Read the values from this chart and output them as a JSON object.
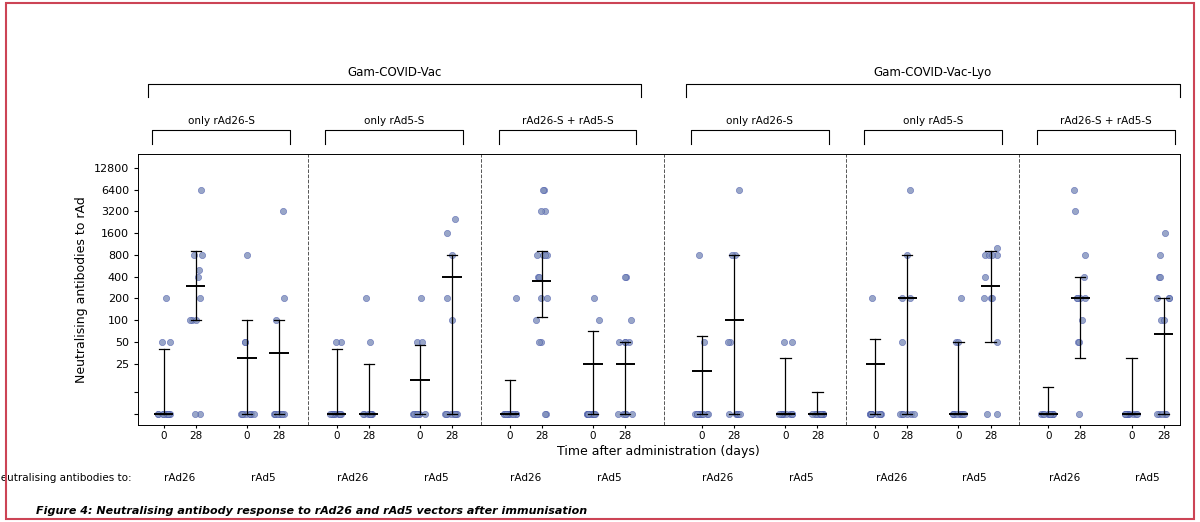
{
  "title_vac1": "Gam-COVID-Vac",
  "title_vac2": "Gam-COVID-Vac-Lyo",
  "ylabel": "Neutralising antibodies to rAd",
  "xlabel": "Time after administration (days)",
  "caption": "Figure 4: Neutralising antibody response to rAd26 and rAd5 vectors after immunisation",
  "neutralising_label": "Neutralising antibodies to:",
  "sub_names": [
    "only rAd26-S",
    "only rAd5-S",
    "rAd26-S + rAd5-S"
  ],
  "antibody_labels": [
    "rAd26",
    "rAd5"
  ],
  "yticks": [
    5,
    10,
    25,
    50,
    100,
    200,
    400,
    800,
    1600,
    3200,
    6400,
    12800
  ],
  "ytick_labels": [
    "",
    "",
    "25",
    "50",
    "100",
    "200",
    "400",
    "800",
    "1600",
    "3200",
    "6400",
    "12800"
  ],
  "dot_color": "#8090bb",
  "dot_edge_color": "#4455aa",
  "background_color": "#ffffff",
  "border_color": "#cc4455",
  "columns": [
    {
      "group": 0,
      "timepoint": 0,
      "ab": "rAd26",
      "dots": [
        5,
        5,
        5,
        5,
        5,
        5,
        5,
        5,
        5,
        5,
        50,
        50,
        200
      ],
      "median": 5,
      "iqr_low": 5,
      "iqr_high": 40
    },
    {
      "group": 0,
      "timepoint": 28,
      "ab": "rAd26",
      "dots": [
        5,
        5,
        100,
        100,
        100,
        200,
        400,
        500,
        800,
        800,
        6400
      ],
      "median": 300,
      "iqr_low": 100,
      "iqr_high": 900
    },
    {
      "group": 0,
      "timepoint": 0,
      "ab": "rAd5",
      "dots": [
        5,
        5,
        5,
        5,
        5,
        5,
        5,
        5,
        50,
        50,
        800
      ],
      "median": 30,
      "iqr_low": 5,
      "iqr_high": 100
    },
    {
      "group": 0,
      "timepoint": 28,
      "ab": "rAd5",
      "dots": [
        5,
        5,
        5,
        5,
        5,
        5,
        5,
        5,
        100,
        200,
        3200
      ],
      "median": 35,
      "iqr_low": 5,
      "iqr_high": 100
    },
    {
      "group": 1,
      "timepoint": 0,
      "ab": "rAd26",
      "dots": [
        5,
        5,
        5,
        5,
        5,
        5,
        5,
        5,
        5,
        50,
        50
      ],
      "median": 5,
      "iqr_low": 5,
      "iqr_high": 40
    },
    {
      "group": 1,
      "timepoint": 28,
      "ab": "rAd26",
      "dots": [
        5,
        5,
        5,
        5,
        5,
        5,
        5,
        5,
        5,
        50,
        200
      ],
      "median": 5,
      "iqr_low": 5,
      "iqr_high": 25
    },
    {
      "group": 1,
      "timepoint": 0,
      "ab": "rAd5",
      "dots": [
        5,
        5,
        5,
        5,
        5,
        5,
        5,
        5,
        50,
        50,
        200
      ],
      "median": 15,
      "iqr_low": 5,
      "iqr_high": 45
    },
    {
      "group": 1,
      "timepoint": 28,
      "ab": "rAd5",
      "dots": [
        5,
        5,
        5,
        5,
        5,
        5,
        5,
        5,
        100,
        200,
        800,
        1600,
        2500
      ],
      "median": 400,
      "iqr_low": 5,
      "iqr_high": 800
    },
    {
      "group": 2,
      "timepoint": 0,
      "ab": "rAd26",
      "dots": [
        5,
        5,
        5,
        5,
        5,
        5,
        5,
        5,
        5,
        5,
        5,
        200
      ],
      "median": 5,
      "iqr_low": 5,
      "iqr_high": 15
    },
    {
      "group": 2,
      "timepoint": 28,
      "ab": "rAd26",
      "dots": [
        5,
        5,
        50,
        50,
        100,
        200,
        200,
        400,
        400,
        800,
        800,
        800,
        800,
        3200,
        3200,
        6400,
        6400
      ],
      "median": 350,
      "iqr_low": 110,
      "iqr_high": 900
    },
    {
      "group": 2,
      "timepoint": 0,
      "ab": "rAd5",
      "dots": [
        5,
        5,
        5,
        5,
        5,
        5,
        5,
        5,
        5,
        5,
        100,
        200
      ],
      "median": 25,
      "iqr_low": 5,
      "iqr_high": 70
    },
    {
      "group": 2,
      "timepoint": 28,
      "ab": "rAd5",
      "dots": [
        5,
        5,
        5,
        5,
        5,
        50,
        50,
        50,
        50,
        100,
        400,
        400
      ],
      "median": 25,
      "iqr_low": 5,
      "iqr_high": 50
    },
    {
      "group": 3,
      "timepoint": 0,
      "ab": "rAd26",
      "dots": [
        5,
        5,
        5,
        5,
        5,
        5,
        5,
        5,
        5,
        5,
        50,
        800
      ],
      "median": 20,
      "iqr_low": 5,
      "iqr_high": 60
    },
    {
      "group": 3,
      "timepoint": 28,
      "ab": "rAd26",
      "dots": [
        5,
        5,
        5,
        5,
        5,
        50,
        50,
        800,
        800,
        6400
      ],
      "median": 100,
      "iqr_low": 5,
      "iqr_high": 800
    },
    {
      "group": 3,
      "timepoint": 0,
      "ab": "rAd5",
      "dots": [
        5,
        5,
        5,
        5,
        5,
        5,
        5,
        5,
        5,
        50,
        50
      ],
      "median": 5,
      "iqr_low": 5,
      "iqr_high": 30
    },
    {
      "group": 3,
      "timepoint": 28,
      "ab": "rAd5",
      "dots": [
        5,
        5,
        5,
        5,
        5,
        5,
        5,
        5,
        5,
        5,
        5
      ],
      "median": 5,
      "iqr_low": 5,
      "iqr_high": 10
    },
    {
      "group": 4,
      "timepoint": 0,
      "ab": "rAd26",
      "dots": [
        5,
        5,
        5,
        5,
        5,
        5,
        5,
        5,
        5,
        5,
        200
      ],
      "median": 25,
      "iqr_low": 5,
      "iqr_high": 55
    },
    {
      "group": 4,
      "timepoint": 28,
      "ab": "rAd26",
      "dots": [
        5,
        5,
        5,
        5,
        5,
        5,
        50,
        200,
        200,
        800,
        6400
      ],
      "median": 200,
      "iqr_low": 5,
      "iqr_high": 800
    },
    {
      "group": 4,
      "timepoint": 0,
      "ab": "rAd5",
      "dots": [
        5,
        5,
        5,
        5,
        5,
        5,
        5,
        5,
        5,
        50,
        50,
        200
      ],
      "median": 5,
      "iqr_low": 5,
      "iqr_high": 50
    },
    {
      "group": 4,
      "timepoint": 28,
      "ab": "rAd5",
      "dots": [
        5,
        5,
        50,
        200,
        200,
        200,
        400,
        800,
        800,
        800,
        800,
        1000
      ],
      "median": 300,
      "iqr_low": 50,
      "iqr_high": 900
    },
    {
      "group": 5,
      "timepoint": 0,
      "ab": "rAd26",
      "dots": [
        5,
        5,
        5,
        5,
        5,
        5,
        5,
        5,
        5,
        5,
        5,
        5
      ],
      "median": 5,
      "iqr_low": 5,
      "iqr_high": 12
    },
    {
      "group": 5,
      "timepoint": 28,
      "ab": "rAd26",
      "dots": [
        5,
        50,
        50,
        100,
        200,
        200,
        200,
        200,
        400,
        800,
        3200,
        6400
      ],
      "median": 200,
      "iqr_low": 30,
      "iqr_high": 400
    },
    {
      "group": 5,
      "timepoint": 0,
      "ab": "rAd5",
      "dots": [
        5,
        5,
        5,
        5,
        5,
        5,
        5,
        5,
        5,
        5,
        5,
        5
      ],
      "median": 5,
      "iqr_low": 5,
      "iqr_high": 30
    },
    {
      "group": 5,
      "timepoint": 28,
      "ab": "rAd5",
      "dots": [
        5,
        5,
        5,
        5,
        5,
        100,
        100,
        200,
        200,
        200,
        400,
        400,
        800,
        1600
      ],
      "median": 65,
      "iqr_low": 5,
      "iqr_high": 200
    }
  ]
}
